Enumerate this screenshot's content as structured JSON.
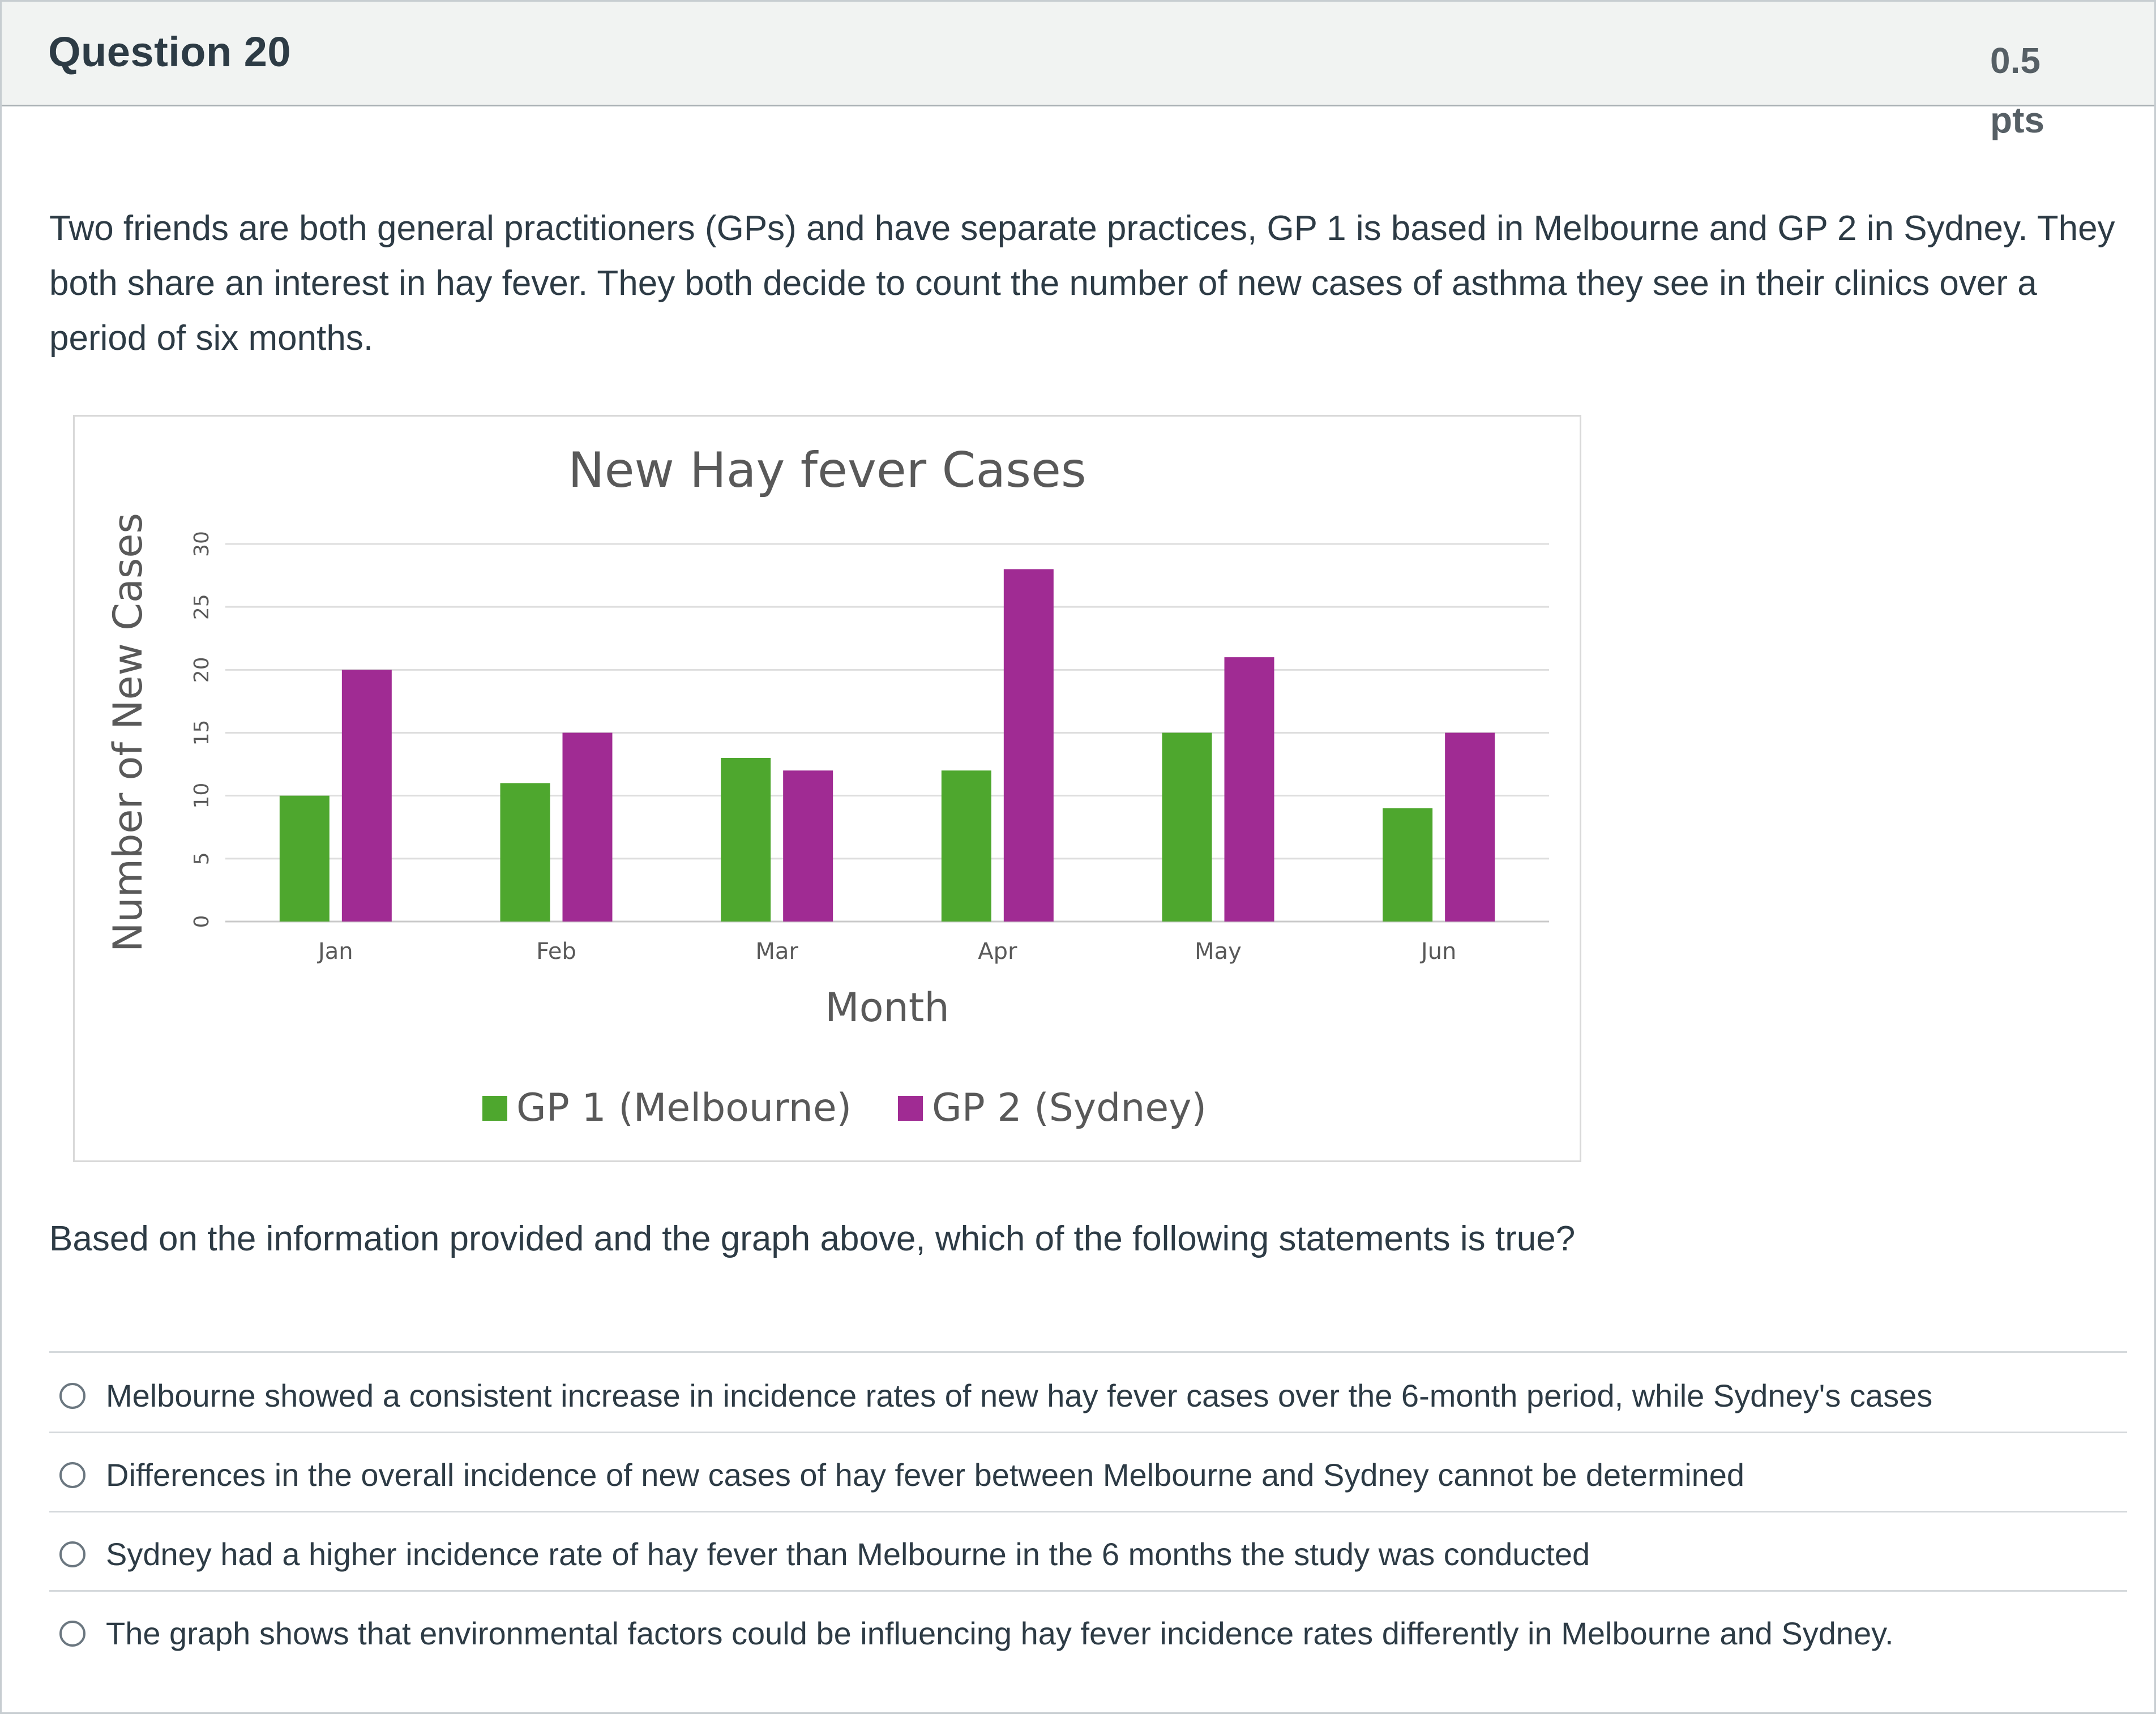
{
  "question": {
    "title": "Question 20",
    "points": "0.5 pts",
    "text": "Two friends are both general practitioners (GPs) and have separate practices, GP 1 is based in Melbourne and GP 2 in Sydney. They both share an interest in hay fever. They both decide to count the number of new cases of asthma they see in their clinics over a period of six months.",
    "prompt": "Based on the information provided and the graph above, which of the following statements is true?",
    "answers": [
      "Melbourne showed a consistent increase in incidence rates of new hay fever cases over the 6-month period, while Sydney's cases",
      "Differences in the overall incidence of new cases of hay fever between Melbourne and Sydney cannot be determined",
      "Sydney had a higher incidence rate of hay fever than Melbourne in the 6 months the study was conducted",
      "The graph shows that environmental factors could be influencing hay fever incidence rates differently in Melbourne and Sydney."
    ]
  },
  "chart_data": {
    "type": "bar",
    "title": "New Hay fever Cases",
    "xlabel": "Month",
    "ylabel": "Number of New Cases",
    "categories": [
      "Jan",
      "Feb",
      "Mar",
      "Apr",
      "May",
      "Jun"
    ],
    "ylim": [
      0,
      30
    ],
    "yticks": [
      0,
      5,
      10,
      15,
      20,
      25,
      30
    ],
    "grid": true,
    "legend": "bottom",
    "series": [
      {
        "name": "GP 1 (Melbourne)",
        "color": "#4ea72e",
        "values": [
          10,
          11,
          13,
          12,
          15,
          9
        ]
      },
      {
        "name": "GP 2 (Sydney)",
        "color": "#a02b93",
        "values": [
          20,
          15,
          12,
          28,
          21,
          15
        ]
      }
    ]
  }
}
